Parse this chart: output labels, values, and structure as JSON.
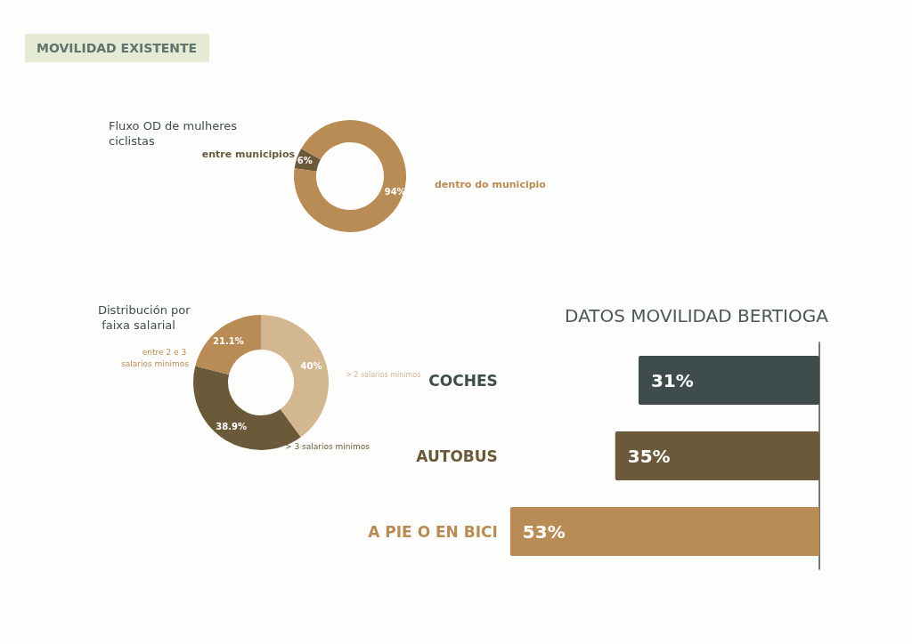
{
  "chart_data": [
    {
      "type": "donut",
      "title": "Fluxo OD de mulheres ciclistas",
      "annotations": [
        "MOVILIDAD EXISTENTE"
      ],
      "categories": [
        "entre municipios",
        "dentro do municipio"
      ],
      "values": [
        6,
        94
      ],
      "colors": [
        "#6b5a3a",
        "#b98c55"
      ],
      "value_labels": [
        "6%",
        "94%"
      ],
      "legend": false
    },
    {
      "type": "donut",
      "title": "Distribución por faixa salarial",
      "categories": [
        "> 2 salarios minimos",
        "> 3 salarios minimos",
        "entre 2 e 3 salarios minimos"
      ],
      "values": [
        40,
        38.9,
        21.1
      ],
      "colors": [
        "#d2b790",
        "#6b5a3a",
        "#b98c55"
      ],
      "value_labels": [
        "40%",
        "38.9%",
        "21.1%"
      ],
      "legend": false
    },
    {
      "type": "bar",
      "orientation": "horizontal",
      "title": "DATOS MOVILIDAD BERTIOGA",
      "categories": [
        "COCHES",
        "AUTOBUS",
        "A PIE O EN BICI"
      ],
      "values": [
        31,
        35,
        53
      ],
      "colors": [
        "#3e4d4c",
        "#6b5a3a",
        "#b98c55"
      ],
      "value_labels": [
        "31%",
        "35%",
        "53%"
      ],
      "legend": false
    }
  ]
}
